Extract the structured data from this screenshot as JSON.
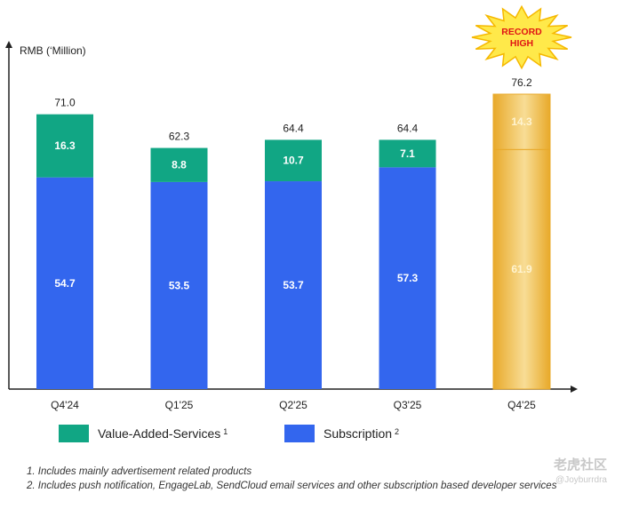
{
  "chart_data": {
    "type": "bar",
    "stacked": true,
    "categories": [
      "Q4'24",
      "Q1'25",
      "Q2'25",
      "Q3'25",
      "Q4'25"
    ],
    "series": [
      {
        "name": "Subscription",
        "note": "2",
        "values": [
          54.7,
          53.5,
          53.7,
          57.3,
          61.9
        ],
        "color": "#3366ee",
        "label_color": "#ffffff"
      },
      {
        "name": "Value-Added-Services",
        "note": "1",
        "values": [
          16.3,
          8.8,
          10.7,
          7.1,
          14.3
        ],
        "color": "#11a684",
        "label_color": "#ffffff"
      }
    ],
    "totals": [
      "71.0",
      "62.3",
      "64.4",
      "64.4",
      "76.2"
    ],
    "segment_labels": [
      [
        "54.7",
        "53.5",
        "53.7",
        "57.3",
        "61.9"
      ],
      [
        "16.3",
        "8.8",
        "10.7",
        "7.1",
        "14.3"
      ]
    ],
    "highlight": {
      "index": 4,
      "fill_light": "#f8dd95",
      "fill_dark": "#e8a92a",
      "label_color": "#fff4d0",
      "badge_line1": "RECORD",
      "badge_line2": "HIGH",
      "badge_fill": "#ffe94a",
      "badge_stroke": "#f5b800",
      "badge_text_color": "#e01515"
    },
    "ylabel": "RMB (‘Million)",
    "xlabel": "",
    "ylim": [
      0,
      76.2
    ],
    "grid": false
  },
  "legend": {
    "items": [
      {
        "label": "Value-Added-Services",
        "sup": "1",
        "color": "#11a684"
      },
      {
        "label": "Subscription",
        "sup": "2",
        "color": "#3366ee"
      }
    ]
  },
  "footnotes": [
    "1. Includes mainly advertisement related products",
    "2. Includes push notification, EngageLab, SendCloud email services and other subscription based developer services"
  ],
  "watermark": {
    "text": "老虎社区",
    "sub": "@Joyburrdra"
  }
}
